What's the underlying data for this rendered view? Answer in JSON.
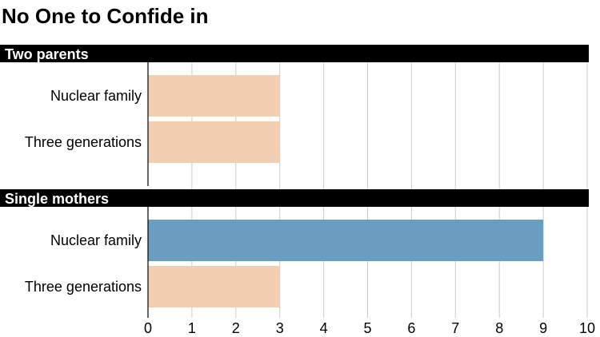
{
  "chart_data": {
    "type": "bar",
    "orientation": "horizontal",
    "title": "No One to Confide in",
    "xlim": [
      0,
      10
    ],
    "x_ticks": [
      0,
      1,
      2,
      3,
      4,
      5,
      6,
      7,
      8,
      9,
      10
    ],
    "grid": true,
    "colors": {
      "default": "#f2cfb0",
      "highlight": "#6a9ec0",
      "header": "#000000"
    },
    "groups": [
      {
        "name": "Two parents",
        "bars": [
          {
            "category": "Nuclear family",
            "value": 3,
            "highlight": false
          },
          {
            "category": "Three generations",
            "value": 3,
            "highlight": false
          }
        ]
      },
      {
        "name": "Single mothers",
        "bars": [
          {
            "category": "Nuclear family",
            "value": 9,
            "highlight": true
          },
          {
            "category": "Three generations",
            "value": 3,
            "highlight": false
          }
        ]
      }
    ]
  }
}
